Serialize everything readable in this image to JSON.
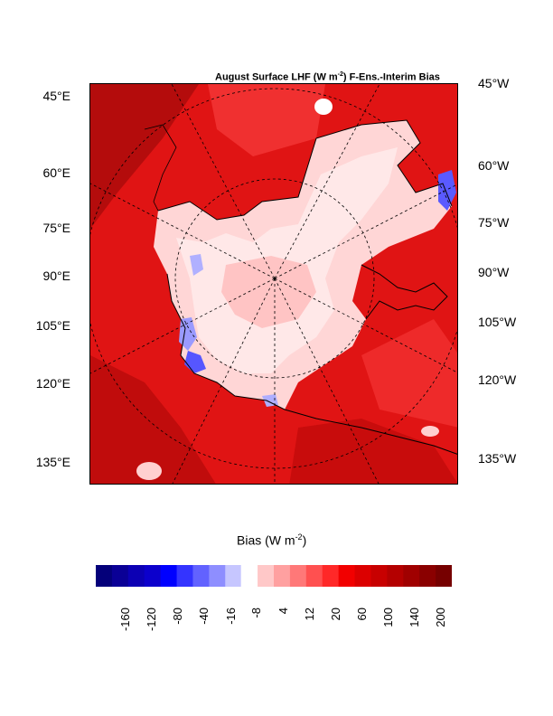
{
  "title": {
    "prefix": "August Surface LHF (W m",
    "sup": "-2",
    "suffix": ") F-Ens.-Interim Bias"
  },
  "map": {
    "left_labels": [
      "45°E",
      "60°E",
      "75°E",
      "90°E",
      "105°E",
      "120°E",
      "135°E"
    ],
    "right_labels": [
      "45°W",
      "60°W",
      "75°W",
      "90°W",
      "105°W",
      "120°W",
      "135°W"
    ],
    "background_color": "#e01010"
  },
  "colorbar": {
    "title_prefix": "Bias (W m",
    "title_sup": "-2",
    "title_suffix": ")",
    "ticks": [
      "-160",
      "-120",
      "-80",
      "-40",
      "-16",
      "-8",
      "4",
      "12",
      "20",
      "60",
      "100",
      "140",
      "200"
    ],
    "colors": [
      "#04007a",
      "#0a0096",
      "#0c00b4",
      "#0c00cc",
      "#0000ff",
      "#3434ff",
      "#6262ff",
      "#8e8eff",
      "#c6c6ff",
      "#ffffff",
      "#ffc8c8",
      "#ffa0a0",
      "#ff7878",
      "#ff5050",
      "#ff2828",
      "#f20000",
      "#dc0000",
      "#c80000",
      "#b40000",
      "#a00000",
      "#8a0000",
      "#760000"
    ]
  }
}
